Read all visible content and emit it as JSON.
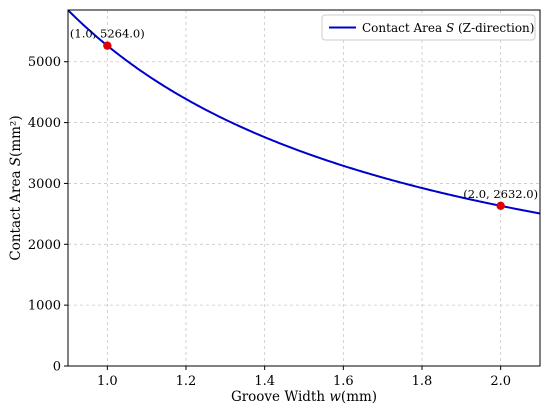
{
  "chart_data": {
    "type": "line",
    "title": "",
    "xlabel_prefix": "Groove Width ",
    "xlabel_var": "w",
    "xlabel_suffix": "(mm)",
    "ylabel_prefix": "Contact Area ",
    "ylabel_var": "S",
    "ylabel_suffix": "(mm²)",
    "xlim": [
      0.9,
      2.1
    ],
    "ylim": [
      0,
      5850
    ],
    "xticks": [
      "1.0",
      "1.2",
      "1.4",
      "1.6",
      "1.8",
      "2.0"
    ],
    "yticks": [
      "0",
      "1000",
      "2000",
      "3000",
      "4000",
      "5000"
    ],
    "grid": true,
    "legend_position": "top-right",
    "series": [
      {
        "legend_prefix": "Contact Area ",
        "legend_var": "S",
        "legend_suffix": " (Z-direction)",
        "color": "#0000cc",
        "formula": "S = 5264 / w",
        "x": [
          0.9,
          1.0,
          1.1,
          1.2,
          1.3,
          1.4,
          1.5,
          1.6,
          1.7,
          1.8,
          1.9,
          2.0,
          2.1
        ],
        "y": [
          5848.9,
          5264.0,
          4785.5,
          4386.7,
          4049.2,
          3760.0,
          3509.3,
          3290.0,
          3096.5,
          2924.4,
          2770.5,
          2632.0,
          2506.7
        ]
      }
    ],
    "points": [
      {
        "x": 1.0,
        "y": 5264.0,
        "label": "(1.0, 5264.0)",
        "color": "#e00000"
      },
      {
        "x": 2.0,
        "y": 2632.0,
        "label": "(2.0, 2632.0)",
        "color": "#e00000"
      }
    ]
  }
}
